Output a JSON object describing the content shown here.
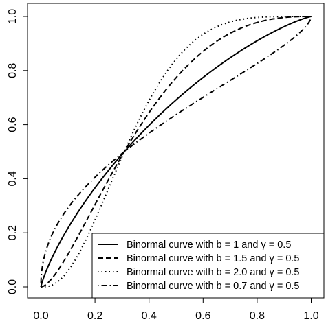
{
  "chart_data": {
    "type": "line",
    "title": "",
    "xlabel": "",
    "ylabel": "",
    "xlim": [
      0,
      1
    ],
    "ylim": [
      0,
      1
    ],
    "x_ticks": [
      "0.0",
      "0.2",
      "0.4",
      "0.6",
      "0.8",
      "1.0"
    ],
    "y_ticks": [
      "0.0",
      "0.2",
      "0.4",
      "0.6",
      "0.8",
      "1.0"
    ],
    "grid": false,
    "legend_position": "bottom-right",
    "series": [
      {
        "name": "Binormal curve with b = 1 and γ = 0.5",
        "b": 1.0,
        "gamma": 0.5,
        "line_style": "solid"
      },
      {
        "name": "Binormal curve with b = 1.5 and γ = 0.5",
        "b": 1.5,
        "gamma": 0.5,
        "line_style": "dashed"
      },
      {
        "name": "Binormal curve with b = 2.0 and γ = 0.5",
        "b": 2.0,
        "gamma": 0.5,
        "line_style": "dotted"
      },
      {
        "name": "Binormal curve with b = 0.7 and γ = 0.5",
        "b": 0.7,
        "gamma": 0.5,
        "line_style": "dotdash"
      }
    ],
    "colors": {
      "line": "#000000",
      "background": "#ffffff"
    }
  }
}
